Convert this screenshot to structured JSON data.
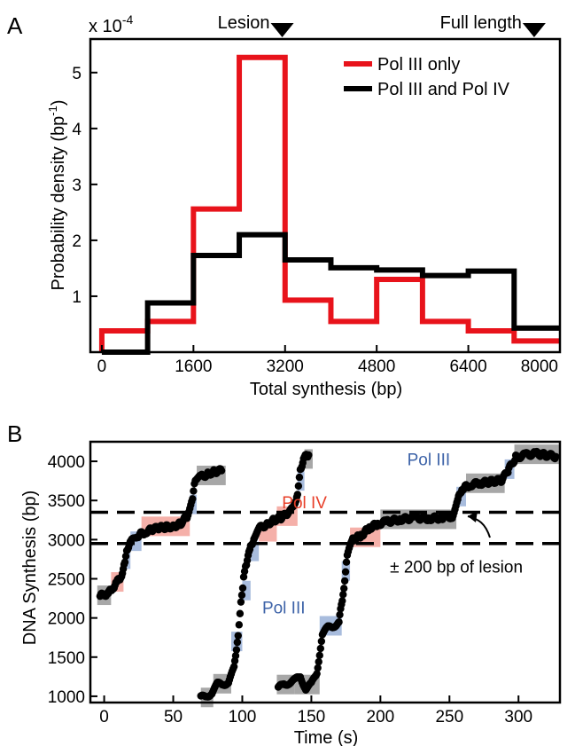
{
  "chart_data": [
    {
      "panel_label": "A",
      "type": "step-histogram",
      "xlabel": "Total synthesis (bp)",
      "ylabel": "Probability density (bp",
      "ylabel_sup": "-1",
      "ylabel_close": ")",
      "y_multiplier_base": "x 10",
      "y_multiplier_exp": "-4",
      "xlim": [
        -200,
        8000
      ],
      "ylim": [
        0,
        5.6
      ],
      "xticks": [
        0,
        1600,
        3200,
        4800,
        6400,
        8000
      ],
      "yticks": [
        1,
        2,
        3,
        4,
        5
      ],
      "annotations": [
        {
          "text": "Lesion",
          "x": 3150
        },
        {
          "text": "Full length",
          "x": 7550
        }
      ],
      "legend_position": "top-right",
      "bin_edges": [
        0,
        800,
        1600,
        2400,
        3200,
        4000,
        4800,
        5600,
        6400,
        7200,
        8000
      ],
      "series": [
        {
          "name": "Pol III only",
          "color": "#e8131b",
          "values": [
            0.38,
            0.55,
            2.56,
            5.27,
            0.93,
            0.55,
            1.3,
            0.55,
            0.38,
            0.2
          ]
        },
        {
          "name": "Pol III and Pol IV",
          "color": "#000000",
          "values": [
            0.0,
            0.88,
            1.73,
            2.1,
            1.65,
            1.51,
            1.47,
            1.37,
            1.45,
            0.43
          ]
        }
      ]
    },
    {
      "panel_label": "B",
      "type": "scatter",
      "xlabel": "Time (s)",
      "ylabel": "DNA Synthesis (bp)",
      "xlim": [
        -10,
        330
      ],
      "ylim": [
        920,
        4250
      ],
      "xticks": [
        0,
        50,
        100,
        150,
        200,
        250,
        300
      ],
      "yticks": [
        1000,
        1500,
        2000,
        2500,
        3000,
        3500,
        4000
      ],
      "hlines": [
        3350,
        2950
      ],
      "hline_style": "dashed",
      "labels": [
        {
          "text": "Pol IV",
          "color": "#e8402a",
          "x": 145,
          "y": 3400
        },
        {
          "text": "Pol III",
          "color": "#3d63a8",
          "x": 235,
          "y": 3950
        },
        {
          "text": "Pol III",
          "color": "#3d63a8",
          "x": 130,
          "y": 2060
        },
        {
          "text": "± 200 bp of lesion",
          "color": "#000000",
          "x": 255,
          "y": 2580
        }
      ],
      "shading_colors": {
        "pol_iv": "#f4a7a0",
        "pol_iii": "#9fb5d9",
        "pause": "#9d9d9d"
      },
      "segments": [
        {
          "t": [
            -5,
            5
          ],
          "y": 2290,
          "kind": "pause"
        },
        {
          "t": [
            5,
            14
          ],
          "y": 2460,
          "kind": "pol_iv"
        },
        {
          "t": [
            14,
            19
          ],
          "y": 2750,
          "kind": "pol_iii"
        },
        {
          "t": [
            19,
            27
          ],
          "y": 2980,
          "kind": "pol_iii"
        },
        {
          "t": [
            27,
            62
          ],
          "y": 3170,
          "kind": "pol_iv"
        },
        {
          "t": [
            62,
            67
          ],
          "y": 3450,
          "kind": "pol_iii"
        },
        {
          "t": [
            67,
            88
          ],
          "y": 3820,
          "kind": "pause"
        },
        {
          "t": [
            70,
            79
          ],
          "y": 985,
          "kind": "pause"
        },
        {
          "t": [
            79,
            92
          ],
          "y": 1160,
          "kind": "pause"
        },
        {
          "t": [
            92,
            100
          ],
          "y": 1700,
          "kind": "pol_iii"
        },
        {
          "t": [
            100,
            106
          ],
          "y": 2350,
          "kind": "pol_iii"
        },
        {
          "t": [
            106,
            112
          ],
          "y": 2850,
          "kind": "pol_iii"
        },
        {
          "t": [
            112,
            125
          ],
          "y": 3100,
          "kind": "pol_iv"
        },
        {
          "t": [
            125,
            140
          ],
          "y": 3300,
          "kind": "pol_iv"
        },
        {
          "t": [
            140,
            145
          ],
          "y": 3750,
          "kind": "pol_iii"
        },
        {
          "t": [
            145,
            151
          ],
          "y": 4030,
          "kind": "pause"
        },
        {
          "t": [
            125,
            138
          ],
          "y": 1150,
          "kind": "pause"
        },
        {
          "t": [
            138,
            156
          ],
          "y": 1150,
          "kind": "pause"
        },
        {
          "t": [
            156,
            172
          ],
          "y": 1900,
          "kind": "pol_iii"
        },
        {
          "t": [
            172,
            178
          ],
          "y": 2600,
          "kind": "pol_iii"
        },
        {
          "t": [
            178,
            200
          ],
          "y": 3030,
          "kind": "pol_iv"
        },
        {
          "t": [
            200,
            255
          ],
          "y": 3260,
          "kind": "pause"
        },
        {
          "t": [
            255,
            262
          ],
          "y": 3550,
          "kind": "pol_iii"
        },
        {
          "t": [
            262,
            290
          ],
          "y": 3720,
          "kind": "pause"
        },
        {
          "t": [
            290,
            297
          ],
          "y": 3900,
          "kind": "pol_iii"
        },
        {
          "t": [
            297,
            330
          ],
          "y": 4090,
          "kind": "pause"
        }
      ],
      "traces": [
        [
          [
            -3,
            2280
          ],
          [
            0,
            2300
          ],
          [
            3,
            2310
          ],
          [
            6,
            2380
          ],
          [
            9,
            2450
          ],
          [
            12,
            2520
          ],
          [
            15,
            2700
          ],
          [
            17,
            2900
          ],
          [
            20,
            2980
          ],
          [
            24,
            3050
          ],
          [
            30,
            3100
          ],
          [
            35,
            3130
          ],
          [
            40,
            3150
          ],
          [
            45,
            3160
          ],
          [
            50,
            3170
          ],
          [
            55,
            3200
          ],
          [
            60,
            3300
          ],
          [
            64,
            3500
          ],
          [
            66,
            3780
          ],
          [
            70,
            3800
          ],
          [
            75,
            3840
          ],
          [
            80,
            3870
          ],
          [
            85,
            3880
          ]
        ],
        [
          [
            70,
            980
          ],
          [
            74,
            1000
          ],
          [
            78,
            1050
          ],
          [
            82,
            1150
          ],
          [
            86,
            1160
          ],
          [
            90,
            1180
          ],
          [
            94,
            1350
          ],
          [
            97,
            1800
          ],
          [
            99,
            2200
          ],
          [
            101,
            2500
          ],
          [
            103,
            2700
          ],
          [
            106,
            2900
          ],
          [
            109,
            3050
          ],
          [
            113,
            3150
          ],
          [
            118,
            3200
          ],
          [
            123,
            3250
          ],
          [
            128,
            3280
          ],
          [
            133,
            3330
          ],
          [
            137,
            3400
          ],
          [
            140,
            3600
          ],
          [
            142,
            3900
          ],
          [
            145,
            4050
          ],
          [
            148,
            4080
          ]
        ],
        [
          [
            126,
            1100
          ],
          [
            130,
            1150
          ],
          [
            134,
            1180
          ],
          [
            138,
            1200
          ],
          [
            142,
            1250
          ],
          [
            146,
            1100
          ],
          [
            150,
            1150
          ],
          [
            154,
            1300
          ],
          [
            158,
            1800
          ],
          [
            162,
            1870
          ],
          [
            166,
            1900
          ],
          [
            170,
            1950
          ],
          [
            173,
            2300
          ],
          [
            176,
            2800
          ],
          [
            180,
            3000
          ],
          [
            186,
            3050
          ],
          [
            192,
            3150
          ],
          [
            198,
            3200
          ],
          [
            205,
            3230
          ],
          [
            215,
            3260
          ],
          [
            225,
            3280
          ],
          [
            235,
            3270
          ],
          [
            245,
            3280
          ],
          [
            252,
            3300
          ],
          [
            256,
            3500
          ],
          [
            259,
            3650
          ],
          [
            265,
            3700
          ],
          [
            272,
            3720
          ],
          [
            280,
            3740
          ],
          [
            288,
            3760
          ],
          [
            293,
            3900
          ],
          [
            298,
            4050
          ],
          [
            305,
            4080
          ],
          [
            312,
            4100
          ],
          [
            320,
            4080
          ],
          [
            327,
            4060
          ]
        ]
      ]
    }
  ]
}
